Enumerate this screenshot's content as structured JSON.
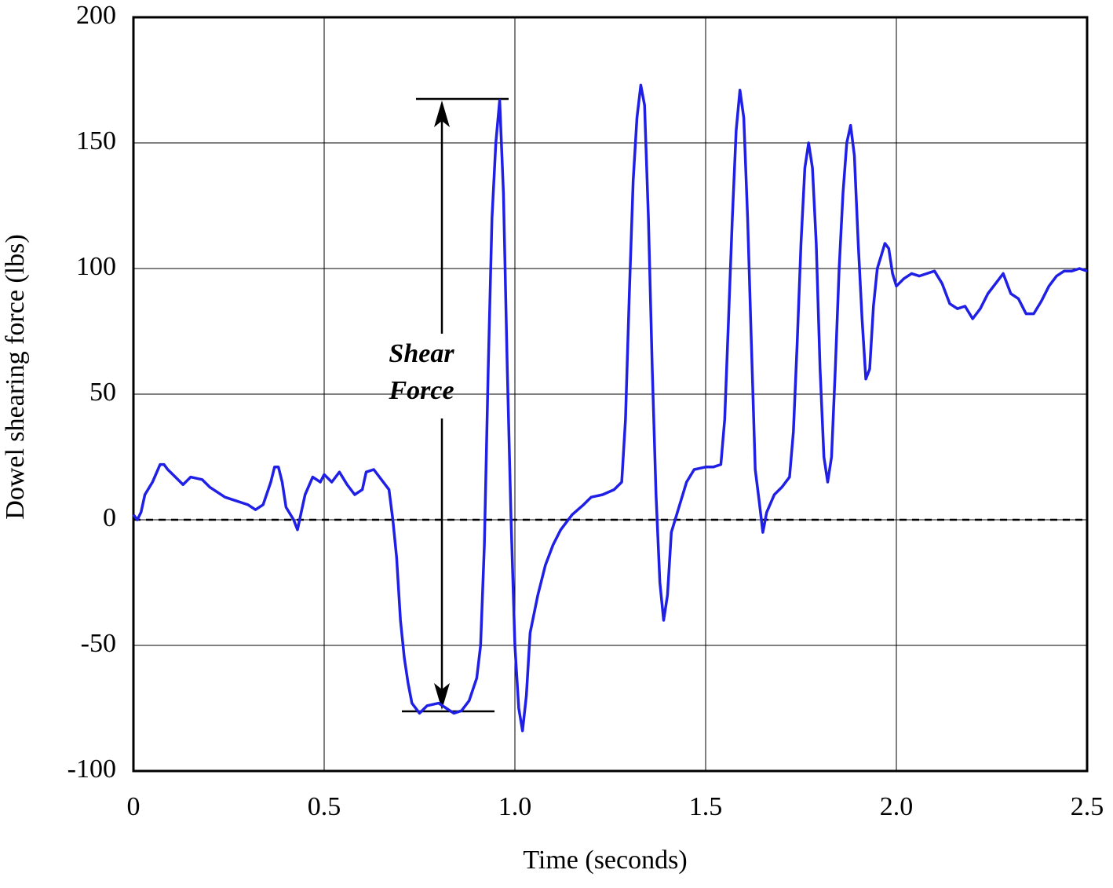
{
  "chart_data": {
    "type": "line",
    "x_label": "Time (seconds)",
    "y_label": "Dowel shearing force (lbs)",
    "annotation": [
      "Shear",
      "Force"
    ],
    "xlim": [
      0,
      2.5
    ],
    "xticks": [
      0,
      0.5,
      {
        "value": 1,
        "label": "1.0"
      },
      1.5,
      {
        "value": 2,
        "label": "2.0"
      },
      2.5
    ],
    "ylim": [
      -100,
      200
    ],
    "yticks": [
      200,
      150,
      100,
      50,
      0,
      -50,
      -100
    ],
    "grid": true,
    "series": [
      {
        "color": "#1f1fe6",
        "x": [
          0,
          0.01,
          0.02,
          0.03,
          0.05,
          0.07,
          0.08,
          0.09,
          0.11,
          0.13,
          0.15,
          0.18,
          0.2,
          0.22,
          0.24,
          0.26,
          0.28,
          0.3,
          0.32,
          0.34,
          0.36,
          0.37,
          0.38,
          0.39,
          0.4,
          0.42,
          0.43,
          0.44,
          0.45,
          0.47,
          0.49,
          0.5,
          0.52,
          0.54,
          0.56,
          0.58,
          0.6,
          0.61,
          0.63,
          0.65,
          0.67,
          0.68,
          0.69,
          0.7,
          0.71,
          0.72,
          0.73,
          0.75,
          0.77,
          0.8,
          0.82,
          0.84,
          0.86,
          0.88,
          0.9,
          0.91,
          0.92,
          0.93,
          0.94,
          0.95,
          0.96,
          0.97,
          0.98,
          0.99,
          1.0,
          1.01,
          1.02,
          1.03,
          1.04,
          1.06,
          1.08,
          1.1,
          1.12,
          1.15,
          1.18,
          1.2,
          1.23,
          1.26,
          1.28,
          1.29,
          1.3,
          1.31,
          1.32,
          1.33,
          1.34,
          1.35,
          1.36,
          1.37,
          1.38,
          1.39,
          1.4,
          1.41,
          1.43,
          1.45,
          1.47,
          1.5,
          1.52,
          1.54,
          1.55,
          1.56,
          1.57,
          1.58,
          1.59,
          1.6,
          1.61,
          1.62,
          1.63,
          1.64,
          1.65,
          1.66,
          1.68,
          1.7,
          1.72,
          1.73,
          1.74,
          1.75,
          1.76,
          1.77,
          1.78,
          1.79,
          1.8,
          1.81,
          1.82,
          1.83,
          1.84,
          1.85,
          1.86,
          1.87,
          1.88,
          1.89,
          1.9,
          1.91,
          1.92,
          1.93,
          1.94,
          1.95,
          1.96,
          1.97,
          1.98,
          1.99,
          2.0,
          2.02,
          2.04,
          2.06,
          2.08,
          2.1,
          2.12,
          2.14,
          2.16,
          2.18,
          2.2,
          2.22,
          2.24,
          2.26,
          2.28,
          2.3,
          2.32,
          2.34,
          2.36,
          2.38,
          2.4,
          2.42,
          2.44,
          2.46,
          2.48,
          2.5
        ],
        "values": [
          2,
          0,
          3,
          10,
          15,
          22,
          22,
          20,
          17,
          14,
          17,
          16,
          13,
          11,
          9,
          8,
          7,
          6,
          4,
          6,
          15,
          21,
          21,
          15,
          5,
          0,
          -4,
          3,
          10,
          17,
          15,
          18,
          15,
          19,
          14,
          10,
          12,
          19,
          20,
          16,
          12,
          0,
          -15,
          -40,
          -55,
          -65,
          -73,
          -77,
          -74,
          -73,
          -75,
          -77,
          -76,
          -72,
          -63,
          -50,
          -10,
          60,
          120,
          150,
          167,
          130,
          60,
          0,
          -50,
          -75,
          -84,
          -70,
          -45,
          -30,
          -18,
          -10,
          -4,
          2,
          6,
          9,
          10,
          12,
          15,
          40,
          90,
          135,
          160,
          173,
          165,
          120,
          60,
          10,
          -25,
          -40,
          -30,
          -5,
          5,
          15,
          20,
          21,
          21,
          22,
          40,
          80,
          120,
          155,
          171,
          160,
          120,
          70,
          20,
          8,
          -5,
          3,
          10,
          13,
          17,
          35,
          70,
          110,
          140,
          150,
          140,
          110,
          60,
          25,
          15,
          25,
          60,
          100,
          130,
          150,
          157,
          145,
          110,
          80,
          56,
          60,
          85,
          100,
          105,
          110,
          108,
          98,
          93,
          96,
          98,
          97,
          98,
          99,
          94,
          86,
          84,
          85,
          80,
          84,
          90,
          94,
          98,
          90,
          88,
          82,
          82,
          87,
          93,
          97,
          99,
          99,
          100,
          99
        ]
      }
    ]
  }
}
